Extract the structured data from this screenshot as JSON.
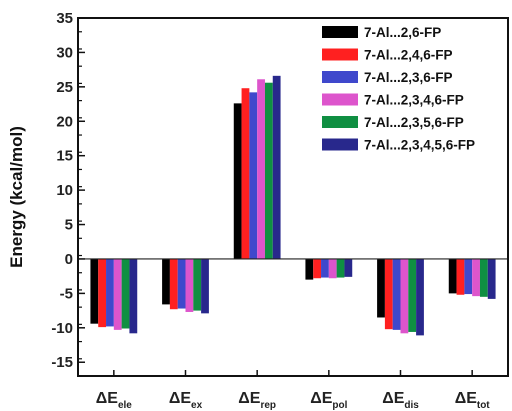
{
  "chart_data": {
    "type": "bar",
    "ylabel": "Energy (kcal/mol)",
    "xlabel": "",
    "ylim": [
      -17,
      35
    ],
    "yticks": [
      35,
      30,
      25,
      20,
      15,
      10,
      5,
      0,
      -5,
      -10,
      -15
    ],
    "categories": [
      {
        "main": "ΔE",
        "sub": "ele"
      },
      {
        "main": "ΔE",
        "sub": "ex"
      },
      {
        "main": "ΔE",
        "sub": "rep"
      },
      {
        "main": "ΔE",
        "sub": "pol"
      },
      {
        "main": "ΔE",
        "sub": "dis"
      },
      {
        "main": "ΔE",
        "sub": "tot"
      }
    ],
    "series": [
      {
        "name": "7-Al...2,6-FP",
        "color": "#000000",
        "values": [
          -9.4,
          -6.6,
          22.6,
          -3.0,
          -8.5,
          -5.0
        ]
      },
      {
        "name": "7-Al...2,4,6-FP",
        "color": "#ff2020",
        "values": [
          -9.9,
          -7.3,
          24.8,
          -2.8,
          -10.2,
          -5.2
        ]
      },
      {
        "name": "7-Al...2,3,6-FP",
        "color": "#3f48cc",
        "values": [
          -9.8,
          -7.2,
          24.2,
          -2.7,
          -10.3,
          -5.1
        ]
      },
      {
        "name": "7-Al...2,3,4,6-FP",
        "color": "#dd55cc",
        "values": [
          -10.3,
          -7.7,
          26.1,
          -2.8,
          -10.8,
          -5.4
        ]
      },
      {
        "name": "7-Al...2,3,5,6-FP",
        "color": "#0f8f42",
        "values": [
          -10.1,
          -7.5,
          25.6,
          -2.7,
          -10.6,
          -5.5
        ]
      },
      {
        "name": "7-Al...2,3,4,5,6-FP",
        "color": "#28288c",
        "values": [
          -10.8,
          -7.9,
          26.6,
          -2.6,
          -11.1,
          -5.8
        ]
      }
    ],
    "legend_position": "top-right",
    "grid": false
  }
}
